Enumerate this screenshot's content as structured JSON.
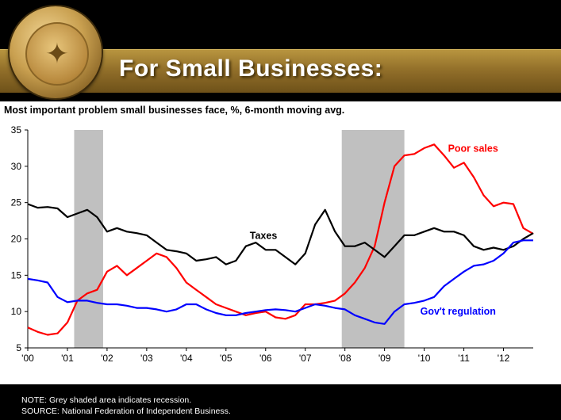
{
  "slide": {
    "title": "For Small Businesses:",
    "subtitle": "Most important problem small businesses face, %, 6-month moving avg.",
    "notes": [
      "NOTE: Grey shaded area indicates recession.",
      "SOURCE: National Federation of Independent Business."
    ]
  },
  "chart_data": {
    "type": "line",
    "title": "Most important problem small businesses face, %, 6-month moving avg.",
    "xlabel": "",
    "ylabel": "",
    "xlim": [
      2000,
      2012.75
    ],
    "ylim": [
      5,
      35
    ],
    "yticks": [
      5,
      10,
      15,
      20,
      25,
      30,
      35
    ],
    "xtick_labels": [
      "'00",
      "'01",
      "'02",
      "'03",
      "'04",
      "'05",
      "'06",
      "'07",
      "'08",
      "'09",
      "'10",
      "'11",
      "'12"
    ],
    "recessions": [
      [
        2001.17,
        2001.9
      ],
      [
        2007.92,
        2009.5
      ]
    ],
    "grid": false,
    "legend": "inline labels",
    "colors": {
      "poor_sales": "#ff0000",
      "taxes": "#000000",
      "govt_regulation": "#0000ff",
      "recession": "#c0c0c0"
    },
    "series": [
      {
        "name": "Poor sales",
        "label_position": [
          2010.6,
          32
        ],
        "x": [
          2000,
          2000.25,
          2000.5,
          2000.75,
          2001,
          2001.25,
          2001.5,
          2001.75,
          2002,
          2002.25,
          2002.5,
          2002.75,
          2003,
          2003.25,
          2003.5,
          2003.75,
          2004,
          2004.25,
          2004.5,
          2004.75,
          2005,
          2005.25,
          2005.5,
          2005.75,
          2006,
          2006.25,
          2006.5,
          2006.75,
          2007,
          2007.25,
          2007.5,
          2007.75,
          2008,
          2008.25,
          2008.5,
          2008.75,
          2009,
          2009.25,
          2009.5,
          2009.75,
          2010,
          2010.25,
          2010.5,
          2010.75,
          2011,
          2011.25,
          2011.5,
          2011.75,
          2012,
          2012.25,
          2012.5,
          2012.75
        ],
        "values": [
          7.8,
          7.2,
          6.8,
          7.0,
          8.5,
          11.5,
          12.5,
          13.0,
          15.5,
          16.3,
          15.0,
          16.0,
          17.0,
          18.0,
          17.5,
          16.0,
          14.0,
          13.0,
          12.0,
          11.0,
          10.5,
          10.0,
          9.5,
          9.8,
          10.0,
          9.2,
          9.0,
          9.5,
          11.0,
          11.0,
          11.2,
          11.5,
          12.5,
          14.0,
          16.0,
          19.0,
          25.0,
          30.0,
          31.5,
          31.7,
          32.5,
          33.0,
          31.5,
          29.8,
          30.5,
          28.5,
          26.0,
          24.5,
          25.0,
          24.8,
          21.5,
          20.7
        ]
      },
      {
        "name": "Taxes",
        "label_position": [
          2005.6,
          20
        ],
        "x": [
          2000,
          2000.25,
          2000.5,
          2000.75,
          2001,
          2001.25,
          2001.5,
          2001.75,
          2002,
          2002.25,
          2002.5,
          2002.75,
          2003,
          2003.25,
          2003.5,
          2003.75,
          2004,
          2004.25,
          2004.5,
          2004.75,
          2005,
          2005.25,
          2005.5,
          2005.75,
          2006,
          2006.25,
          2006.5,
          2006.75,
          2007,
          2007.25,
          2007.5,
          2007.75,
          2008,
          2008.25,
          2008.5,
          2008.75,
          2009,
          2009.25,
          2009.5,
          2009.75,
          2010,
          2010.25,
          2010.5,
          2010.75,
          2011,
          2011.25,
          2011.5,
          2011.75,
          2012,
          2012.25,
          2012.5,
          2012.75
        ],
        "values": [
          24.8,
          24.3,
          24.4,
          24.2,
          23.0,
          23.5,
          24.0,
          23.0,
          21.0,
          21.5,
          21.0,
          20.8,
          20.5,
          19.5,
          18.5,
          18.3,
          18.0,
          17.0,
          17.2,
          17.5,
          16.5,
          17.0,
          19.0,
          19.5,
          18.5,
          18.5,
          17.5,
          16.5,
          18.0,
          22.0,
          24.0,
          21.0,
          19.0,
          19.0,
          19.5,
          18.5,
          17.5,
          19.0,
          20.5,
          20.5,
          21.0,
          21.5,
          21.0,
          21.0,
          20.5,
          19.0,
          18.5,
          18.8,
          18.5,
          19.0,
          20.0,
          20.8
        ]
      },
      {
        "name": "Gov't regulation",
        "label_position": [
          2009.9,
          9.6
        ],
        "x": [
          2000,
          2000.25,
          2000.5,
          2000.75,
          2001,
          2001.25,
          2001.5,
          2001.75,
          2002,
          2002.25,
          2002.5,
          2002.75,
          2003,
          2003.25,
          2003.5,
          2003.75,
          2004,
          2004.25,
          2004.5,
          2004.75,
          2005,
          2005.25,
          2005.5,
          2005.75,
          2006,
          2006.25,
          2006.5,
          2006.75,
          2007,
          2007.25,
          2007.5,
          2007.75,
          2008,
          2008.25,
          2008.5,
          2008.75,
          2009,
          2009.25,
          2009.5,
          2009.75,
          2010,
          2010.25,
          2010.5,
          2010.75,
          2011,
          2011.25,
          2011.5,
          2011.75,
          2012,
          2012.25,
          2012.5,
          2012.75
        ],
        "values": [
          14.5,
          14.3,
          14.0,
          12.0,
          11.3,
          11.5,
          11.5,
          11.2,
          11.0,
          11.0,
          10.8,
          10.5,
          10.5,
          10.3,
          10.0,
          10.3,
          11.0,
          11.0,
          10.3,
          9.8,
          9.5,
          9.5,
          9.8,
          10.0,
          10.2,
          10.3,
          10.2,
          10.0,
          10.5,
          11.0,
          10.8,
          10.5,
          10.3,
          9.5,
          9.0,
          8.5,
          8.3,
          10.0,
          11.0,
          11.2,
          11.5,
          12.0,
          13.5,
          14.5,
          15.5,
          16.3,
          16.5,
          17.0,
          18.0,
          19.5,
          19.8,
          19.8
        ]
      }
    ]
  }
}
